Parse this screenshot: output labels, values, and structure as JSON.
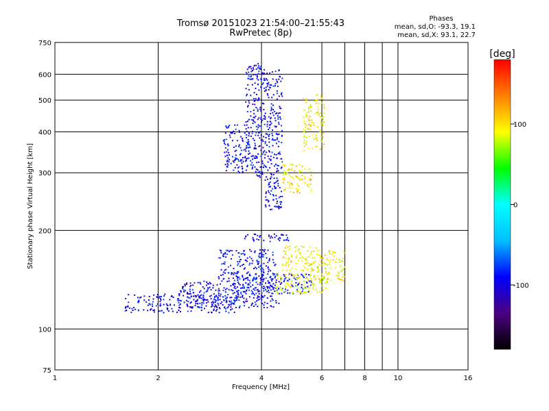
{
  "chart_data": {
    "type": "scatter",
    "title": "Tromsø 20151023 21:54:00–21:55:43",
    "subtitle": "RwPretec (8p)",
    "xlabel": "Frequency [MHz]",
    "ylabel": "Stationary phase Virtual Height [km]",
    "x_scale": "log",
    "y_scale": "log",
    "xlim": [
      1,
      16
    ],
    "ylim": [
      75,
      750
    ],
    "x_ticks": [
      1,
      2,
      4,
      6,
      8,
      10,
      16
    ],
    "x_gridlines": [
      2,
      4,
      6,
      7,
      8,
      9,
      10
    ],
    "y_ticks": [
      75,
      100,
      200,
      300,
      400,
      500,
      600,
      750
    ],
    "y_gridlines": [
      100,
      200,
      300,
      400,
      500,
      600
    ],
    "grid": true,
    "stats": {
      "heading": "Phases",
      "line_o": "mean, sd,O: -93.3, 19.1",
      "line_x": "mean, sd,X:  93.1, 22.7"
    },
    "colorbar": {
      "label": "[deg]",
      "range": [
        -180,
        180
      ],
      "ticks": [
        100,
        0,
        -100
      ],
      "placement": "right",
      "stops": [
        "#000000",
        "#4b0082",
        "#0000ff",
        "#00bfff",
        "#00ffff",
        "#00ff00",
        "#ffff00",
        "#ff8000",
        "#ff0000"
      ]
    },
    "traces": [
      {
        "name": "",
        "phase": -95,
        "x0": 1.6,
        "x1": 3.4,
        "y0": 112,
        "y1": 128
      },
      {
        "name": "",
        "phase": -95,
        "x0": 2.3,
        "x1": 4.5,
        "y0": 116,
        "y1": 140
      },
      {
        "name": "",
        "phase": -90,
        "x0": 3.3,
        "x1": 5.6,
        "y0": 128,
        "y1": 148
      },
      {
        "name": "",
        "phase": -92,
        "x0": 3.0,
        "x1": 4.4,
        "y0": 140,
        "y1": 175
      },
      {
        "name": "",
        "phase": -100,
        "x0": 3.5,
        "x1": 4.8,
        "y0": 185,
        "y1": 195
      },
      {
        "name": "",
        "phase": -95,
        "x0": 3.6,
        "x1": 4.1,
        "y0": 290,
        "y1": 650
      },
      {
        "name": "",
        "phase": -95,
        "x0": 3.1,
        "x1": 3.7,
        "y0": 300,
        "y1": 420
      },
      {
        "name": "",
        "phase": -95,
        "x0": 4.1,
        "x1": 4.6,
        "y0": 230,
        "y1": 620
      },
      {
        "name": "",
        "phase": 90,
        "x0": 4.4,
        "x1": 6.3,
        "y0": 128,
        "y1": 148
      },
      {
        "name": "",
        "phase": 95,
        "x0": 5.8,
        "x1": 7.0,
        "y0": 140,
        "y1": 175
      },
      {
        "name": "",
        "phase": 92,
        "x0": 4.6,
        "x1": 5.8,
        "y0": 150,
        "y1": 180
      },
      {
        "name": "",
        "phase": 95,
        "x0": 5.3,
        "x1": 6.1,
        "y0": 350,
        "y1": 520
      },
      {
        "name": "",
        "phase": 100,
        "x0": 4.6,
        "x1": 5.6,
        "y0": 260,
        "y1": 320
      }
    ]
  }
}
